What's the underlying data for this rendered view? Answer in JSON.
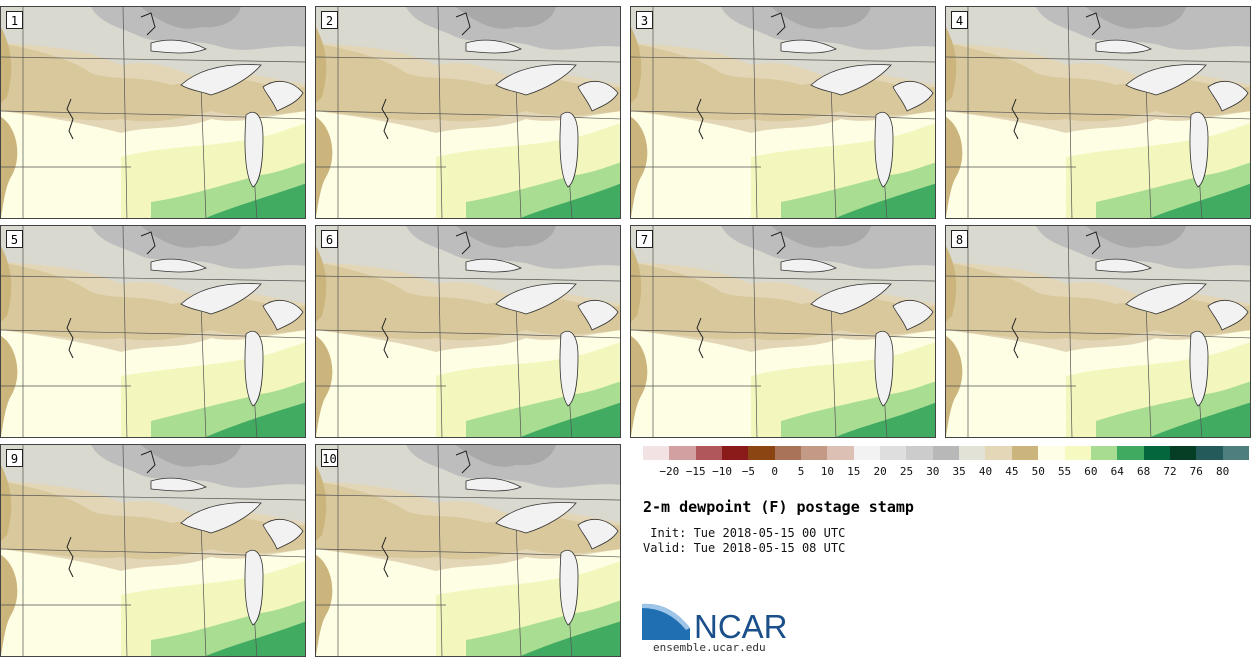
{
  "panels": [
    {
      "label": "1"
    },
    {
      "label": "2"
    },
    {
      "label": "3"
    },
    {
      "label": "4"
    },
    {
      "label": "5"
    },
    {
      "label": "6"
    },
    {
      "label": "7"
    },
    {
      "label": "8"
    },
    {
      "label": "9"
    },
    {
      "label": "10"
    }
  ],
  "legend": {
    "colors": [
      "#f3e2e3",
      "#d3a0a1",
      "#b0575b",
      "#8b1a1a",
      "#8b4513",
      "#a97357",
      "#c39a85",
      "#dcc0b3",
      "#f2f2f2",
      "#dedede",
      "#cccccc",
      "#b8b8b8",
      "#e2e2d6",
      "#e4d7b8",
      "#cbb57c",
      "#fefee6",
      "#f6f9c0",
      "#a8dc90",
      "#3faa60",
      "#04663d",
      "#053e24",
      "#245a5a",
      "#4e7e7e"
    ],
    "tick_labels": [
      "−20",
      "−15",
      "−10",
      "−5",
      "0",
      "5",
      "10",
      "15",
      "20",
      "25",
      "30",
      "35",
      "40",
      "45",
      "50",
      "55",
      "60",
      "64",
      "68",
      "72",
      "76",
      "80"
    ]
  },
  "title": "2-m dewpoint (F) postage stamp",
  "init": " Init: Tue 2018-05-15 00 UTC",
  "valid": "Valid: Tue 2018-05-15 08 UTC",
  "logo_text": "NCAR",
  "site": "ensemble.ucar.edu"
}
